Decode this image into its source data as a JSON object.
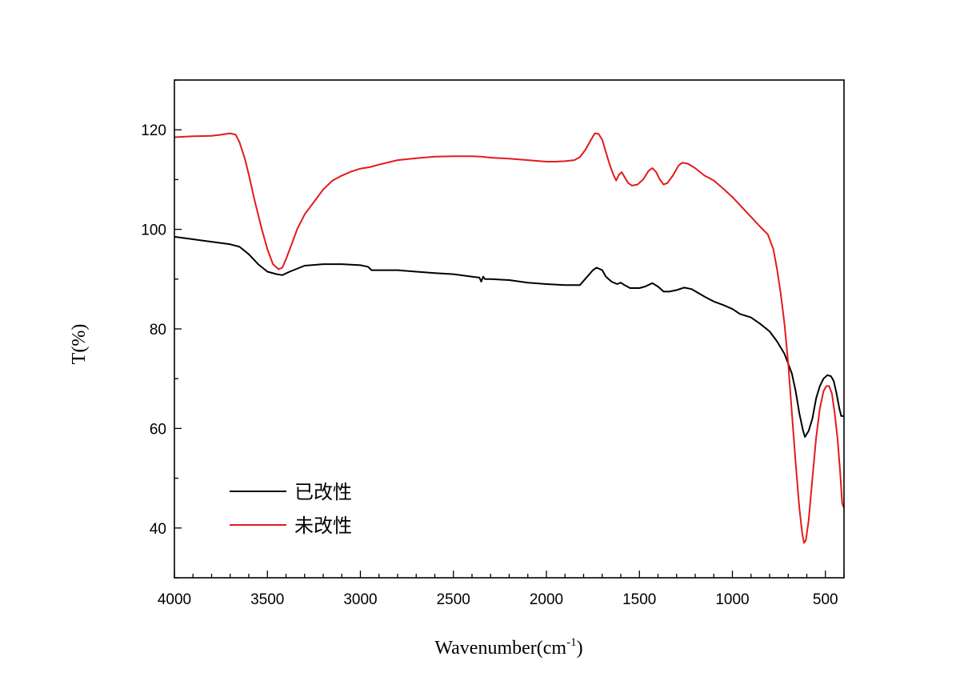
{
  "chart_data": {
    "type": "line",
    "xlabel": "Wavenumber(cm",
    "xlabel_sup": "-1",
    "xlabel_end": ")",
    "ylabel": "T(%)",
    "xlim": [
      4000,
      400
    ],
    "ylim": [
      30,
      130
    ],
    "x_ticks": [
      4000,
      3500,
      3000,
      2500,
      2000,
      1500,
      1000,
      500
    ],
    "y_ticks": [
      40,
      60,
      80,
      100,
      120
    ],
    "grid": false,
    "legend_position": "bottom-left",
    "series": [
      {
        "name": "已改性",
        "color": "#000000",
        "points": [
          [
            4000,
            98.5
          ],
          [
            3900,
            98
          ],
          [
            3800,
            97.5
          ],
          [
            3700,
            97
          ],
          [
            3650,
            96.5
          ],
          [
            3600,
            95
          ],
          [
            3550,
            93
          ],
          [
            3500,
            91.5
          ],
          [
            3450,
            91
          ],
          [
            3420,
            90.8
          ],
          [
            3380,
            91.5
          ],
          [
            3300,
            92.7
          ],
          [
            3200,
            93
          ],
          [
            3100,
            93
          ],
          [
            3000,
            92.8
          ],
          [
            2960,
            92.5
          ],
          [
            2940,
            91.8
          ],
          [
            2900,
            91.8
          ],
          [
            2800,
            91.8
          ],
          [
            2700,
            91.5
          ],
          [
            2600,
            91.2
          ],
          [
            2500,
            91
          ],
          [
            2400,
            90.5
          ],
          [
            2360,
            90.3
          ],
          [
            2350,
            89.5
          ],
          [
            2340,
            90.5
          ],
          [
            2330,
            90
          ],
          [
            2300,
            90
          ],
          [
            2200,
            89.8
          ],
          [
            2100,
            89.3
          ],
          [
            2000,
            89
          ],
          [
            1900,
            88.8
          ],
          [
            1820,
            88.8
          ],
          [
            1780,
            90.5
          ],
          [
            1750,
            91.8
          ],
          [
            1730,
            92.3
          ],
          [
            1700,
            91.8
          ],
          [
            1680,
            90.5
          ],
          [
            1650,
            89.5
          ],
          [
            1620,
            89
          ],
          [
            1600,
            89.3
          ],
          [
            1580,
            88.8
          ],
          [
            1550,
            88.2
          ],
          [
            1500,
            88.2
          ],
          [
            1470,
            88.5
          ],
          [
            1430,
            89.2
          ],
          [
            1400,
            88.5
          ],
          [
            1370,
            87.5
          ],
          [
            1340,
            87.5
          ],
          [
            1300,
            87.8
          ],
          [
            1260,
            88.3
          ],
          [
            1220,
            88
          ],
          [
            1150,
            86.5
          ],
          [
            1100,
            85.5
          ],
          [
            1050,
            84.8
          ],
          [
            1000,
            84
          ],
          [
            960,
            83
          ],
          [
            900,
            82.3
          ],
          [
            850,
            81
          ],
          [
            800,
            79.5
          ],
          [
            760,
            77.5
          ],
          [
            720,
            75
          ],
          [
            700,
            73
          ],
          [
            680,
            71
          ],
          [
            660,
            67.5
          ],
          [
            640,
            63
          ],
          [
            620,
            59.5
          ],
          [
            610,
            58.3
          ],
          [
            590,
            59.5
          ],
          [
            570,
            62
          ],
          [
            550,
            66
          ],
          [
            530,
            68.5
          ],
          [
            510,
            70
          ],
          [
            490,
            70.7
          ],
          [
            470,
            70.5
          ],
          [
            455,
            69.5
          ],
          [
            440,
            67
          ],
          [
            425,
            64
          ],
          [
            415,
            62.5
          ],
          [
            400,
            62.5
          ]
        ]
      },
      {
        "name": "未改性",
        "color": "#e31a1c",
        "points": [
          [
            4000,
            118.5
          ],
          [
            3900,
            118.7
          ],
          [
            3800,
            118.8
          ],
          [
            3750,
            119
          ],
          [
            3700,
            119.3
          ],
          [
            3670,
            119
          ],
          [
            3650,
            117.5
          ],
          [
            3620,
            114
          ],
          [
            3600,
            111
          ],
          [
            3570,
            106
          ],
          [
            3530,
            100
          ],
          [
            3500,
            96
          ],
          [
            3470,
            93
          ],
          [
            3440,
            92
          ],
          [
            3420,
            92.3
          ],
          [
            3400,
            94
          ],
          [
            3370,
            97
          ],
          [
            3340,
            100
          ],
          [
            3300,
            103
          ],
          [
            3250,
            105.5
          ],
          [
            3200,
            108
          ],
          [
            3150,
            109.8
          ],
          [
            3100,
            110.8
          ],
          [
            3050,
            111.6
          ],
          [
            3000,
            112.2
          ],
          [
            2950,
            112.5
          ],
          [
            2900,
            113
          ],
          [
            2800,
            113.9
          ],
          [
            2700,
            114.3
          ],
          [
            2600,
            114.6
          ],
          [
            2500,
            114.7
          ],
          [
            2400,
            114.7
          ],
          [
            2350,
            114.6
          ],
          [
            2300,
            114.4
          ],
          [
            2200,
            114.2
          ],
          [
            2100,
            113.9
          ],
          [
            2000,
            113.6
          ],
          [
            1950,
            113.6
          ],
          [
            1900,
            113.7
          ],
          [
            1850,
            113.9
          ],
          [
            1820,
            114.5
          ],
          [
            1790,
            116
          ],
          [
            1760,
            118
          ],
          [
            1740,
            119.3
          ],
          [
            1720,
            119.2
          ],
          [
            1700,
            118
          ],
          [
            1680,
            115.5
          ],
          [
            1660,
            113
          ],
          [
            1640,
            111
          ],
          [
            1625,
            109.8
          ],
          [
            1610,
            111
          ],
          [
            1595,
            111.5
          ],
          [
            1580,
            110.5
          ],
          [
            1560,
            109.3
          ],
          [
            1540,
            108.8
          ],
          [
            1510,
            109
          ],
          [
            1480,
            110
          ],
          [
            1450,
            111.8
          ],
          [
            1430,
            112.3
          ],
          [
            1410,
            111.5
          ],
          [
            1390,
            110
          ],
          [
            1370,
            109
          ],
          [
            1350,
            109.3
          ],
          [
            1320,
            110.8
          ],
          [
            1290,
            112.8
          ],
          [
            1270,
            113.4
          ],
          [
            1240,
            113.2
          ],
          [
            1200,
            112.3
          ],
          [
            1150,
            110.8
          ],
          [
            1100,
            109.8
          ],
          [
            1050,
            108.2
          ],
          [
            1000,
            106.5
          ],
          [
            950,
            104.5
          ],
          [
            900,
            102.5
          ],
          [
            850,
            100.5
          ],
          [
            810,
            99
          ],
          [
            780,
            96
          ],
          [
            760,
            92
          ],
          [
            740,
            87
          ],
          [
            720,
            81
          ],
          [
            700,
            73
          ],
          [
            680,
            63
          ],
          [
            660,
            53
          ],
          [
            640,
            44
          ],
          [
            625,
            39
          ],
          [
            615,
            37
          ],
          [
            605,
            37.5
          ],
          [
            590,
            41.5
          ],
          [
            570,
            50
          ],
          [
            550,
            58
          ],
          [
            530,
            64
          ],
          [
            510,
            67.5
          ],
          [
            495,
            68.5
          ],
          [
            480,
            68.5
          ],
          [
            465,
            67
          ],
          [
            450,
            63
          ],
          [
            435,
            58
          ],
          [
            420,
            51
          ],
          [
            410,
            45
          ],
          [
            400,
            44
          ]
        ]
      }
    ]
  }
}
